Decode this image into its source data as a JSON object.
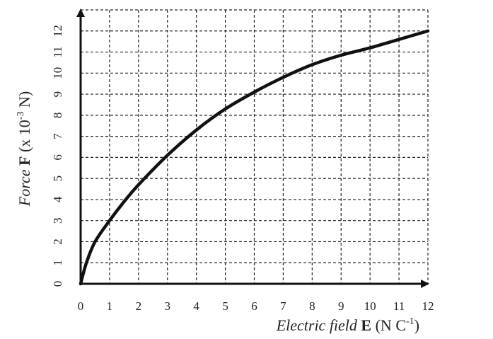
{
  "chart_data": {
    "type": "line",
    "title": "",
    "xlabel": {
      "prefix": "Electric field ",
      "symbol": "E",
      "unit_open": " (N C",
      "unit_exp": "-1",
      "unit_close": ")"
    },
    "ylabel": {
      "prefix": "Force ",
      "symbol": "F",
      "unit_open": " (x 10",
      "unit_exp": "-3",
      "unit_close": " N)"
    },
    "xlim": [
      0,
      12
    ],
    "ylim": [
      0,
      13
    ],
    "xticks": [
      "0",
      "1",
      "2",
      "3",
      "4",
      "5",
      "6",
      "7",
      "8",
      "9",
      "10",
      "11",
      "12"
    ],
    "yticks": [
      "0",
      "1",
      "2",
      "3",
      "4",
      "5",
      "6",
      "7",
      "8",
      "9",
      "10",
      "11",
      "12"
    ],
    "grid": true,
    "grid_style": "dashed",
    "legend": "none",
    "line_color": "#111111",
    "series": [
      {
        "x": [
          0,
          0.2,
          0.5,
          1,
          1.5,
          2,
          3,
          4,
          5,
          6,
          7,
          8,
          9,
          10,
          11,
          12
        ],
        "y": [
          0,
          1.0,
          2.0,
          3.0,
          3.9,
          4.7,
          6.1,
          7.3,
          8.3,
          9.1,
          9.8,
          10.4,
          10.85,
          11.2,
          11.6,
          12.0
        ]
      }
    ]
  }
}
